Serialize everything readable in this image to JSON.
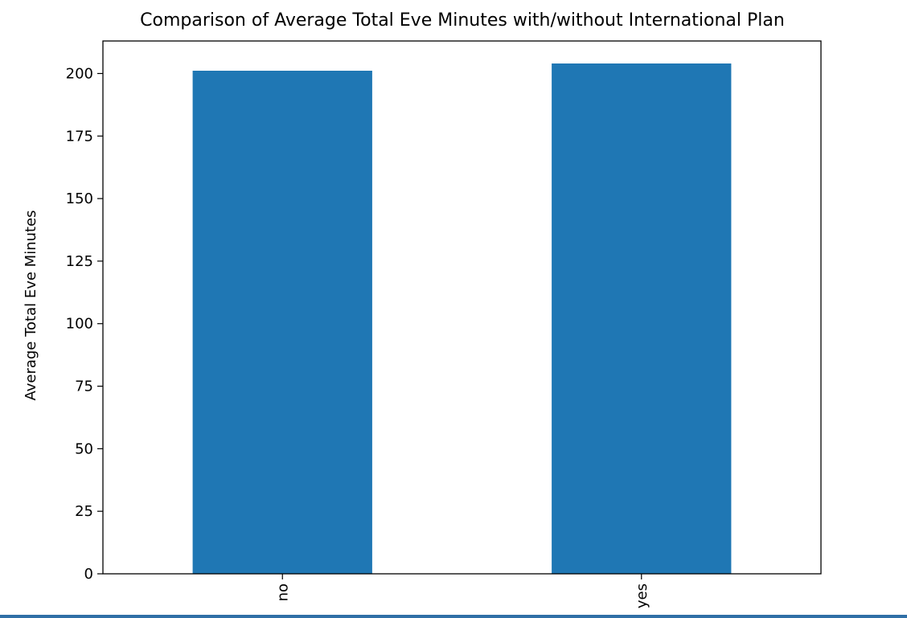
{
  "chart_data": {
    "type": "bar",
    "title": "Comparison of Average Total Eve Minutes with/without International Plan",
    "xlabel": "",
    "ylabel": "Average Total Eve Minutes",
    "categories": [
      "no",
      "yes"
    ],
    "values": [
      201.1,
      204.0
    ],
    "ylim": [
      0,
      213
    ],
    "yticks": [
      0,
      25,
      50,
      75,
      100,
      125,
      150,
      175,
      200
    ],
    "bar_color": "#1f77b4",
    "grid": false,
    "legend": "none",
    "xtick_rotation": 90
  }
}
